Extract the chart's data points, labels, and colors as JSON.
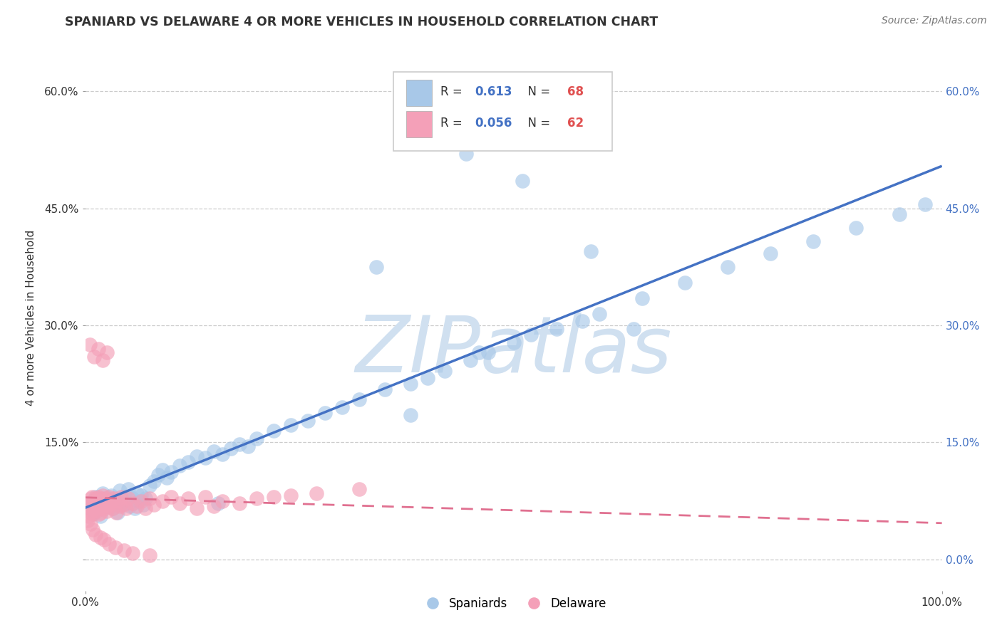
{
  "title": "SPANIARD VS DELAWARE 4 OR MORE VEHICLES IN HOUSEHOLD CORRELATION CHART",
  "source": "Source: ZipAtlas.com",
  "ylabel": "4 or more Vehicles in Household",
  "legend_labels": [
    "Spaniards",
    "Delaware"
  ],
  "r_spaniards": "0.613",
  "n_spaniards": "68",
  "r_delaware": "0.056",
  "n_delaware": "62",
  "xlim": [
    0.0,
    1.0
  ],
  "ylim": [
    -0.04,
    0.66
  ],
  "xtick_labels": [
    "0.0%",
    "",
    "",
    "",
    "",
    "",
    "",
    "",
    "",
    "",
    "100.0%"
  ],
  "xtick_vals": [
    0.0,
    0.1,
    0.2,
    0.3,
    0.4,
    0.5,
    0.6,
    0.7,
    0.8,
    0.9,
    1.0
  ],
  "ytick_labels": [
    "",
    "15.0%",
    "30.0%",
    "45.0%",
    "60.0%"
  ],
  "ytick_vals": [
    0.0,
    0.15,
    0.3,
    0.45,
    0.6
  ],
  "color_spaniards": "#A8C8E8",
  "color_delaware": "#F4A0B8",
  "line_color_spaniards": "#4472C4",
  "line_color_delaware": "#E07090",
  "background_color": "#FFFFFF",
  "watermark_text": "ZIPatlas",
  "watermark_color": "#D0E0F0",
  "spaniards_x": [
    0.005,
    0.008,
    0.01,
    0.012,
    0.015,
    0.018,
    0.02,
    0.022,
    0.025,
    0.028,
    0.03,
    0.032,
    0.035,
    0.038,
    0.04,
    0.042,
    0.045,
    0.048,
    0.05,
    0.052,
    0.055,
    0.058,
    0.06,
    0.062,
    0.065,
    0.068,
    0.07,
    0.075,
    0.08,
    0.085,
    0.09,
    0.095,
    0.1,
    0.11,
    0.12,
    0.13,
    0.14,
    0.15,
    0.16,
    0.17,
    0.18,
    0.19,
    0.2,
    0.22,
    0.24,
    0.26,
    0.28,
    0.3,
    0.32,
    0.35,
    0.38,
    0.4,
    0.42,
    0.45,
    0.47,
    0.5,
    0.52,
    0.55,
    0.58,
    0.6,
    0.65,
    0.7,
    0.75,
    0.8,
    0.85,
    0.9,
    0.95,
    0.98
  ],
  "spaniards_y": [
    0.065,
    0.075,
    0.06,
    0.08,
    0.07,
    0.055,
    0.085,
    0.072,
    0.068,
    0.078,
    0.082,
    0.065,
    0.075,
    0.06,
    0.088,
    0.07,
    0.08,
    0.072,
    0.09,
    0.068,
    0.078,
    0.065,
    0.085,
    0.075,
    0.082,
    0.07,
    0.078,
    0.095,
    0.1,
    0.108,
    0.115,
    0.105,
    0.112,
    0.12,
    0.125,
    0.132,
    0.13,
    0.138,
    0.135,
    0.142,
    0.148,
    0.145,
    0.155,
    0.165,
    0.172,
    0.178,
    0.188,
    0.195,
    0.205,
    0.218,
    0.225,
    0.232,
    0.242,
    0.255,
    0.265,
    0.278,
    0.288,
    0.295,
    0.305,
    0.315,
    0.335,
    0.355,
    0.375,
    0.392,
    0.408,
    0.425,
    0.442,
    0.455
  ],
  "spaniards_y_outliers": [
    0.375,
    0.52,
    0.485,
    0.395,
    0.295,
    0.265,
    0.185,
    0.072
  ],
  "spaniards_x_outliers": [
    0.34,
    0.445,
    0.51,
    0.59,
    0.64,
    0.46,
    0.38,
    0.155
  ],
  "delaware_x": [
    0.002,
    0.004,
    0.005,
    0.006,
    0.007,
    0.007,
    0.008,
    0.009,
    0.01,
    0.01,
    0.011,
    0.012,
    0.013,
    0.014,
    0.015,
    0.015,
    0.016,
    0.016,
    0.017,
    0.018,
    0.018,
    0.019,
    0.02,
    0.02,
    0.021,
    0.022,
    0.023,
    0.024,
    0.025,
    0.026,
    0.027,
    0.028,
    0.03,
    0.032,
    0.034,
    0.036,
    0.038,
    0.04,
    0.042,
    0.045,
    0.048,
    0.05,
    0.055,
    0.06,
    0.065,
    0.07,
    0.075,
    0.08,
    0.09,
    0.1,
    0.11,
    0.12,
    0.13,
    0.14,
    0.15,
    0.16,
    0.18,
    0.2,
    0.22,
    0.24,
    0.27,
    0.32
  ],
  "delaware_y": [
    0.068,
    0.055,
    0.072,
    0.06,
    0.078,
    0.065,
    0.08,
    0.058,
    0.075,
    0.07,
    0.065,
    0.078,
    0.062,
    0.072,
    0.068,
    0.08,
    0.058,
    0.075,
    0.065,
    0.072,
    0.06,
    0.078,
    0.068,
    0.082,
    0.07,
    0.075,
    0.065,
    0.078,
    0.062,
    0.072,
    0.068,
    0.08,
    0.072,
    0.065,
    0.078,
    0.06,
    0.075,
    0.068,
    0.08,
    0.07,
    0.065,
    0.078,
    0.072,
    0.068,
    0.075,
    0.065,
    0.078,
    0.07,
    0.075,
    0.08,
    0.072,
    0.078,
    0.065,
    0.08,
    0.068,
    0.075,
    0.072,
    0.078,
    0.08,
    0.082,
    0.085,
    0.09
  ],
  "delaware_y_outliers": [
    0.275,
    0.26,
    0.27,
    0.255,
    0.265,
    0.05,
    0.045,
    0.038,
    0.032,
    0.028,
    0.025,
    0.02,
    0.015,
    0.012,
    0.008,
    0.005
  ],
  "delaware_x_outliers": [
    0.005,
    0.01,
    0.015,
    0.02,
    0.025,
    0.003,
    0.006,
    0.009,
    0.012,
    0.018,
    0.022,
    0.028,
    0.035,
    0.045,
    0.055,
    0.075
  ]
}
